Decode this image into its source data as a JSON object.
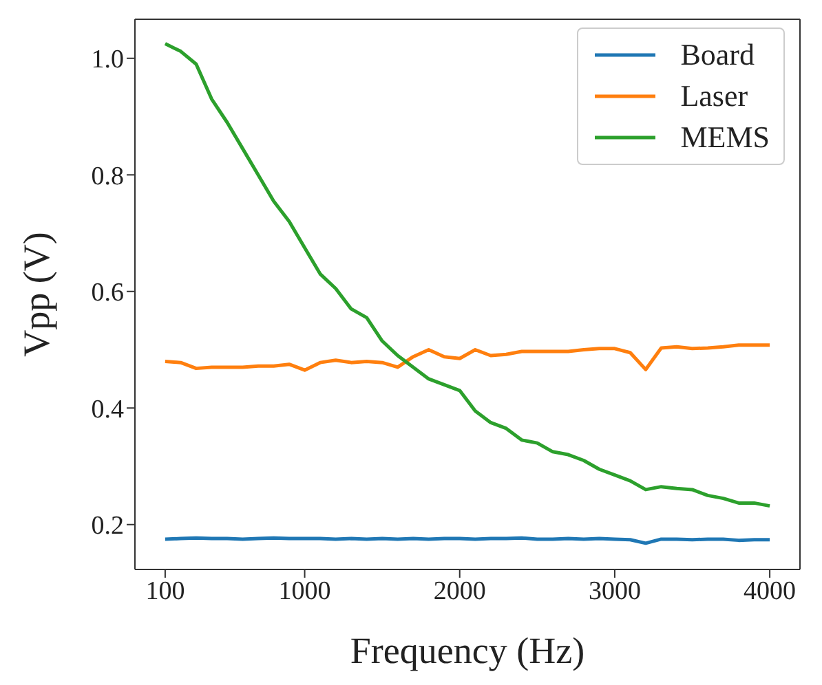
{
  "chart_data": {
    "type": "line",
    "xlabel": "Frequency (Hz)",
    "ylabel": "Vpp (V)",
    "x": [
      100,
      200,
      300,
      400,
      500,
      600,
      700,
      800,
      900,
      1000,
      1100,
      1200,
      1300,
      1400,
      1500,
      1600,
      1700,
      1800,
      1900,
      2000,
      2100,
      2200,
      2300,
      2400,
      2500,
      2600,
      2700,
      2800,
      2900,
      3000,
      3100,
      3200,
      3300,
      3400,
      3500,
      3600,
      3700,
      3800,
      3900,
      4000
    ],
    "series": [
      {
        "name": "Board",
        "color": "#1f77b4",
        "values": [
          0.175,
          0.176,
          0.177,
          0.176,
          0.176,
          0.175,
          0.176,
          0.177,
          0.176,
          0.176,
          0.176,
          0.175,
          0.176,
          0.175,
          0.176,
          0.175,
          0.176,
          0.175,
          0.176,
          0.176,
          0.175,
          0.176,
          0.176,
          0.177,
          0.175,
          0.175,
          0.176,
          0.175,
          0.176,
          0.175,
          0.174,
          0.168,
          0.175,
          0.175,
          0.174,
          0.175,
          0.175,
          0.173,
          0.174,
          0.174
        ]
      },
      {
        "name": "Laser",
        "color": "#ff7f0e",
        "values": [
          0.48,
          0.478,
          0.468,
          0.47,
          0.47,
          0.47,
          0.472,
          0.472,
          0.475,
          0.465,
          0.478,
          0.482,
          0.478,
          0.48,
          0.478,
          0.47,
          0.488,
          0.5,
          0.488,
          0.485,
          0.5,
          0.49,
          0.492,
          0.497,
          0.497,
          0.497,
          0.497,
          0.5,
          0.502,
          0.502,
          0.495,
          0.466,
          0.503,
          0.505,
          0.502,
          0.503,
          0.505,
          0.508,
          0.508,
          0.508
        ]
      },
      {
        "name": "MEMS",
        "color": "#2ca02c",
        "values": [
          1.025,
          1.012,
          0.99,
          0.93,
          0.89,
          0.845,
          0.8,
          0.755,
          0.72,
          0.675,
          0.63,
          0.605,
          0.57,
          0.555,
          0.515,
          0.49,
          0.47,
          0.45,
          0.44,
          0.43,
          0.395,
          0.375,
          0.365,
          0.345,
          0.34,
          0.325,
          0.32,
          0.31,
          0.295,
          0.285,
          0.275,
          0.26,
          0.265,
          0.262,
          0.26,
          0.25,
          0.245,
          0.237,
          0.237,
          0.232
        ]
      }
    ],
    "xlim": [
      -95,
      4195
    ],
    "xticks": [
      100,
      1000,
      2000,
      3000,
      4000
    ],
    "ylim": [
      0.123,
      1.067
    ],
    "yticks": [
      0.2,
      0.4,
      0.6,
      0.8,
      {
        "value": 1,
        "label": "1.0"
      }
    ],
    "grid": false,
    "legend": "top right",
    "marker": "none",
    "line_style": "solid"
  }
}
